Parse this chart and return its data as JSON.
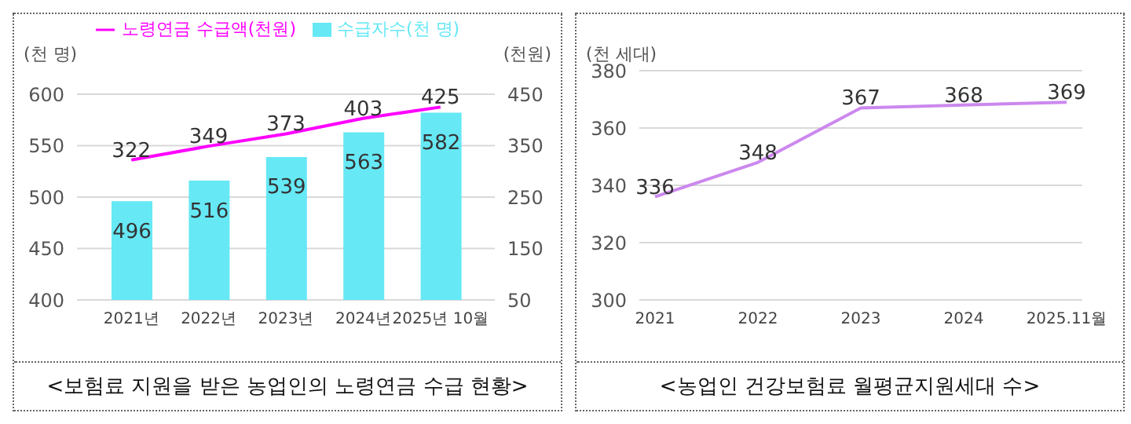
{
  "chart_data": [
    {
      "type": "bar",
      "categories": [
        "2021년",
        "2022년",
        "2023년",
        "2024년",
        "2025년 10월"
      ],
      "ylabel": "(천 명)",
      "y2label": "(천원)",
      "series": [
        {
          "name": "수급자수(천 명)",
          "color": "#66e8f5",
          "values": [
            496,
            516,
            539,
            563,
            582
          ]
        },
        {
          "name": "노령연금 수급액(천원)",
          "type": "line",
          "axis": "y2",
          "color": "#ff00ff",
          "values": [
            322,
            349,
            373,
            403,
            425
          ]
        }
      ],
      "ylim": [
        400,
        600
      ],
      "yticks": [
        400,
        450,
        500,
        550,
        600
      ],
      "y2lim": [
        50,
        450
      ],
      "y2ticks": [
        50,
        150,
        250,
        350,
        450
      ],
      "grid": "y",
      "legend": "top",
      "data_labels": true,
      "marker": "none",
      "annotations": [
        "<보험료 지원을 받은 농업인의 노령연금 수급 현황>"
      ]
    },
    {
      "type": "line",
      "categories": [
        "2021",
        "2022",
        "2023",
        "2024",
        "2025.11월"
      ],
      "ylabel": "(천 세대)",
      "series": [
        {
          "color": "#cc88ee",
          "values": [
            336,
            348,
            367,
            368,
            369
          ]
        }
      ],
      "ylim": [
        300,
        380
      ],
      "yticks": [
        300,
        320,
        340,
        360,
        380
      ],
      "grid": "y",
      "data_labels": true,
      "marker": "none",
      "annotations": [
        "<농업인 건강보험료 월평균지원세대 수>"
      ]
    }
  ]
}
